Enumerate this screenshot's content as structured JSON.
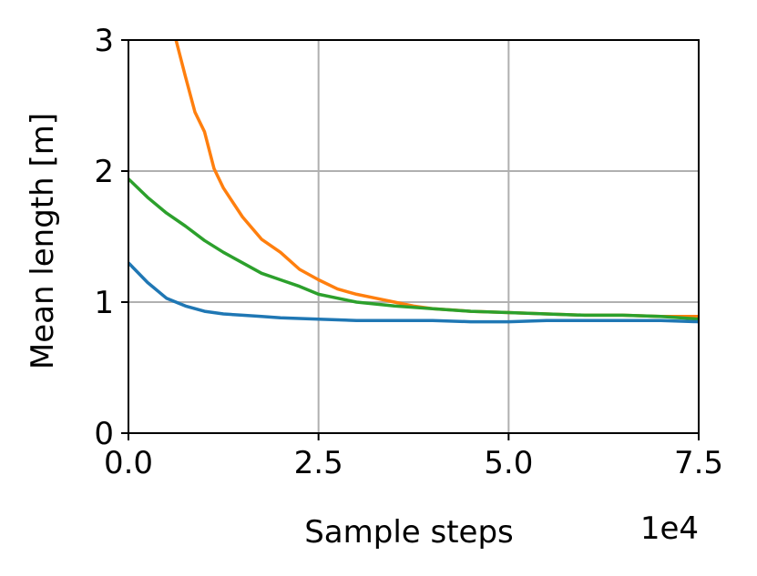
{
  "chart_data": {
    "type": "line",
    "xlabel": "Sample steps",
    "ylabel": "Mean length [m]",
    "x_offset_label": "1e4",
    "xlim": [
      0,
      75000
    ],
    "ylim": [
      0,
      3
    ],
    "grid": true,
    "x_ticks": [
      0,
      25000,
      50000,
      75000
    ],
    "x_tick_labels": [
      "0.0",
      "2.5",
      "5.0",
      "7.5"
    ],
    "y_ticks": [
      0,
      1,
      2,
      3
    ],
    "y_tick_labels": [
      "0",
      "1",
      "2",
      "3"
    ],
    "series": [
      {
        "color": "#ff7f0e",
        "x": [
          6250,
          7500,
          8750,
          10000,
          11250,
          12500,
          15000,
          17500,
          20000,
          22500,
          25000,
          27500,
          30000,
          32500,
          35000,
          37500,
          40000,
          42500,
          45000,
          50000,
          55000,
          60000,
          65000,
          70000,
          75000
        ],
        "y": [
          3.0,
          2.72,
          2.45,
          2.3,
          2.02,
          1.87,
          1.65,
          1.48,
          1.38,
          1.25,
          1.17,
          1.1,
          1.06,
          1.03,
          1.0,
          0.97,
          0.95,
          0.94,
          0.93,
          0.92,
          0.91,
          0.9,
          0.9,
          0.89,
          0.89
        ]
      },
      {
        "color": "#2ca02c",
        "x": [
          0,
          2500,
          5000,
          7500,
          10000,
          12500,
          15000,
          17500,
          20000,
          22500,
          25000,
          27500,
          30000,
          35000,
          40000,
          45000,
          50000,
          55000,
          60000,
          65000,
          70000,
          75000
        ],
        "y": [
          1.94,
          1.8,
          1.68,
          1.58,
          1.47,
          1.38,
          1.3,
          1.22,
          1.17,
          1.12,
          1.06,
          1.03,
          1.0,
          0.97,
          0.95,
          0.93,
          0.92,
          0.91,
          0.9,
          0.9,
          0.89,
          0.87
        ]
      },
      {
        "color": "#1f77b4",
        "x": [
          0,
          2500,
          5000,
          7500,
          10000,
          12500,
          15000,
          17500,
          20000,
          25000,
          30000,
          35000,
          40000,
          45000,
          50000,
          55000,
          60000,
          65000,
          70000,
          75000
        ],
        "y": [
          1.3,
          1.15,
          1.03,
          0.97,
          0.93,
          0.91,
          0.9,
          0.89,
          0.88,
          0.87,
          0.86,
          0.86,
          0.86,
          0.85,
          0.85,
          0.86,
          0.86,
          0.86,
          0.86,
          0.85
        ]
      }
    ]
  }
}
